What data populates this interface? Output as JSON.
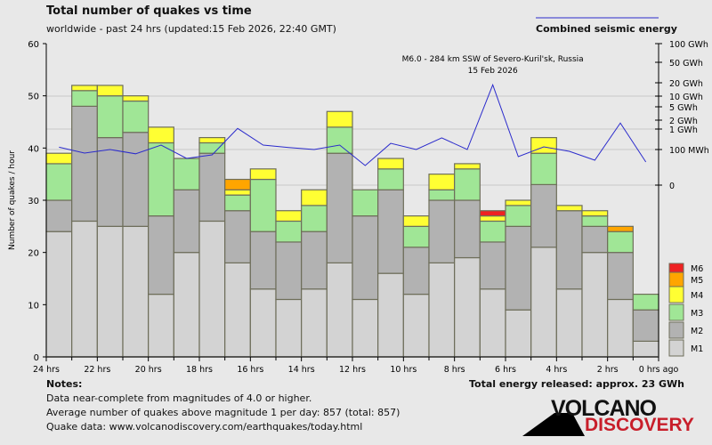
{
  "header": {
    "title": "Total number of quakes vs time",
    "subtitle": "worldwide - past 24 hrs (updated:15 Feb 2026, 22:40 GMT)",
    "energy_legend": "Combined seismic energy"
  },
  "notes": {
    "heading": "Notes:",
    "lines": [
      "Data near-complete from magnitudes of 4.0 or higher.",
      "Average number of quakes above magnitude 1 per day: 857 (total: 857)",
      "Quake data: www.volcanodiscovery.com/earthquakes/today.html"
    ],
    "total_energy": "Total energy released: approx. 23 GWh"
  },
  "logo": {
    "line1": "VOLCANO",
    "line2": "DISCOVERY"
  },
  "chart_data": {
    "type": "bar",
    "stacked": true,
    "title": "Total number of quakes vs time",
    "ylabel": "Number of quakes / hour",
    "ylim": [
      0,
      60
    ],
    "yticks": [
      "0",
      "10",
      "20",
      "30",
      "40",
      "50",
      "60"
    ],
    "xticks": [
      "24 hrs",
      "22 hrs",
      "20 hrs",
      "18 hrs",
      "16 hrs",
      "14 hrs",
      "12 hrs",
      "10 hrs",
      "8 hrs",
      "6 hrs",
      "4 hrs",
      "2 hrs",
      "0 hrs ago"
    ],
    "legend_placement": "right",
    "series": [
      {
        "name": "M1",
        "color": "#d3d3d3",
        "values": [
          24,
          26,
          25,
          25,
          12,
          20,
          26,
          18,
          13,
          11,
          13,
          18,
          11,
          16,
          12,
          18,
          19,
          13,
          9,
          21,
          13,
          20,
          11,
          3
        ]
      },
      {
        "name": "M2",
        "color": "#b2b2b2",
        "values": [
          6,
          22,
          17,
          18,
          15,
          12,
          13,
          10,
          11,
          11,
          11,
          21,
          16,
          16,
          9,
          12,
          11,
          9,
          16,
          12,
          15,
          5,
          9,
          6
        ]
      },
      {
        "name": "M3",
        "color": "#a0e696",
        "values": [
          7,
          3,
          8,
          6,
          14,
          6,
          2,
          3,
          10,
          4,
          5,
          5,
          5,
          4,
          4,
          2,
          6,
          4,
          4,
          6,
          0,
          2,
          4,
          3
        ]
      },
      {
        "name": "M4",
        "color": "#ffff33",
        "values": [
          2,
          1,
          2,
          1,
          3,
          0,
          1,
          1,
          2,
          2,
          3,
          3,
          0,
          2,
          2,
          3,
          1,
          1,
          1,
          3,
          1,
          1,
          0,
          0
        ]
      },
      {
        "name": "M5",
        "color": "#ffa500",
        "values": [
          0,
          0,
          0,
          0,
          0,
          0,
          0,
          2,
          0,
          0,
          0,
          0,
          0,
          0,
          0,
          0,
          0,
          0,
          0,
          0,
          0,
          0,
          1,
          0
        ]
      },
      {
        "name": "M6",
        "color": "#ee2222",
        "values": [
          0,
          0,
          0,
          0,
          0,
          0,
          0,
          0,
          0,
          0,
          0,
          0,
          0,
          0,
          0,
          0,
          0,
          1,
          0,
          0,
          0,
          0,
          0,
          0
        ]
      }
    ],
    "energy": {
      "name": "Combined seismic energy",
      "color": "#2b2bcc",
      "unit": "MWh",
      "values": [
        130,
        90,
        100,
        88,
        165,
        75,
        85,
        1050,
        165,
        125,
        100,
        165,
        55,
        200,
        100,
        370,
        100,
        18000,
        80,
        135,
        95,
        70,
        1600,
        65
      ],
      "axis_ticks": [
        {
          "label": "100 GWh",
          "value": 100000
        },
        {
          "label": "50 GWh",
          "value": 50000
        },
        {
          "label": "20 GWh",
          "value": 20000
        },
        {
          "label": "10 GWh",
          "value": 10000
        },
        {
          "label": "5 GWh",
          "value": 5000
        },
        {
          "label": "2 GWh",
          "value": 2000
        },
        {
          "label": "1 GWh",
          "value": 1000
        },
        {
          "label": "100 MWh",
          "value": 100
        },
        {
          "label": "0",
          "value": 0
        }
      ]
    },
    "annotation": {
      "line1": "M6.0 - 284 km SSW of Severo-Kuril'sk, Russia",
      "line2": "15 Feb 2026",
      "bar_index": 17
    }
  }
}
